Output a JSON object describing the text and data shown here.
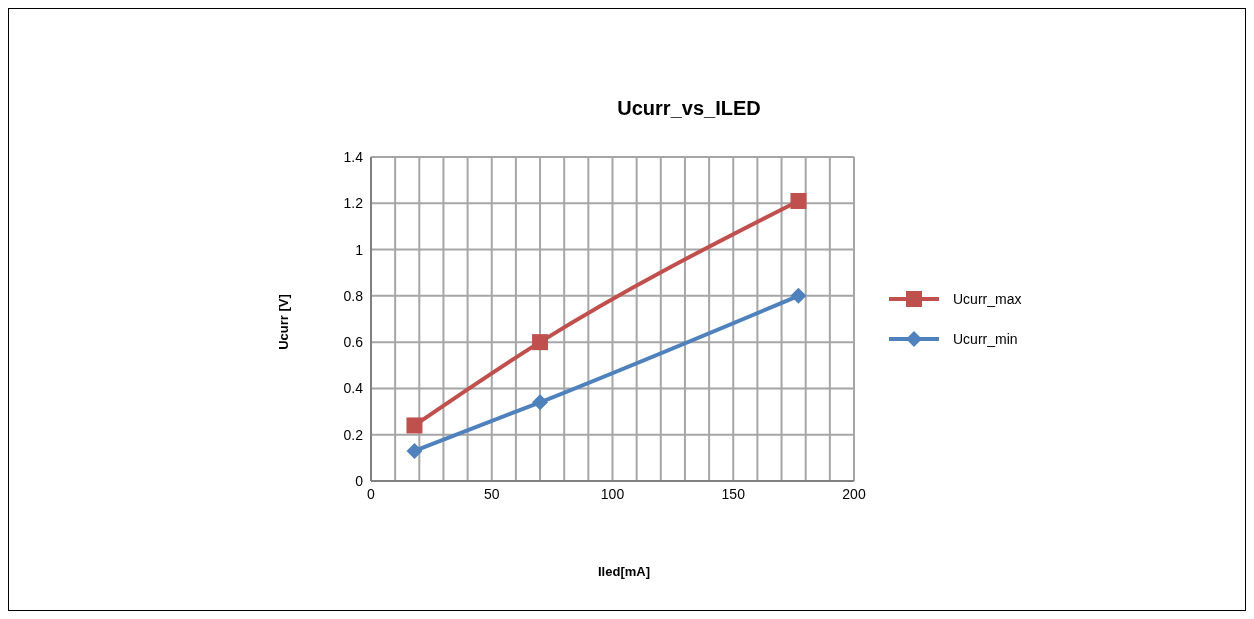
{
  "chart_data": {
    "type": "line",
    "title": "Ucurr_vs_ILED",
    "xlabel": "Iled[mA]",
    "ylabel": "Ucurr [V]",
    "x": [
      18,
      70,
      177
    ],
    "series": [
      {
        "name": "Ucurr_max",
        "color": "#c0504d",
        "marker": "square",
        "values": [
          0.24,
          0.6,
          1.21
        ]
      },
      {
        "name": "Ucurr_min",
        "color": "#4f81bd",
        "marker": "diamond",
        "values": [
          0.13,
          0.34,
          0.8
        ]
      }
    ],
    "xlim": [
      0,
      200
    ],
    "xticks": [
      0,
      {
        "value": 10,
        "label": null
      },
      {
        "value": 20,
        "label": null
      },
      {
        "value": 30,
        "label": null
      },
      {
        "value": 40,
        "label": null
      },
      50,
      {
        "value": 60,
        "label": null
      },
      {
        "value": 70,
        "label": null
      },
      {
        "value": 80,
        "label": null
      },
      {
        "value": 90,
        "label": null
      },
      100,
      {
        "value": 110,
        "label": null
      },
      {
        "value": 120,
        "label": null
      },
      {
        "value": 130,
        "label": null
      },
      {
        "value": 140,
        "label": null
      },
      150,
      {
        "value": 160,
        "label": null
      },
      {
        "value": 170,
        "label": null
      },
      {
        "value": 180,
        "label": null
      },
      {
        "value": 190,
        "label": null
      },
      200
    ],
    "ylim": [
      0,
      1.4
    ],
    "yticks": [
      0,
      0.2,
      0.4,
      0.6,
      0.8,
      1,
      1.2,
      1.4
    ],
    "grid": true,
    "legend": "right",
    "line_style": "solid"
  }
}
